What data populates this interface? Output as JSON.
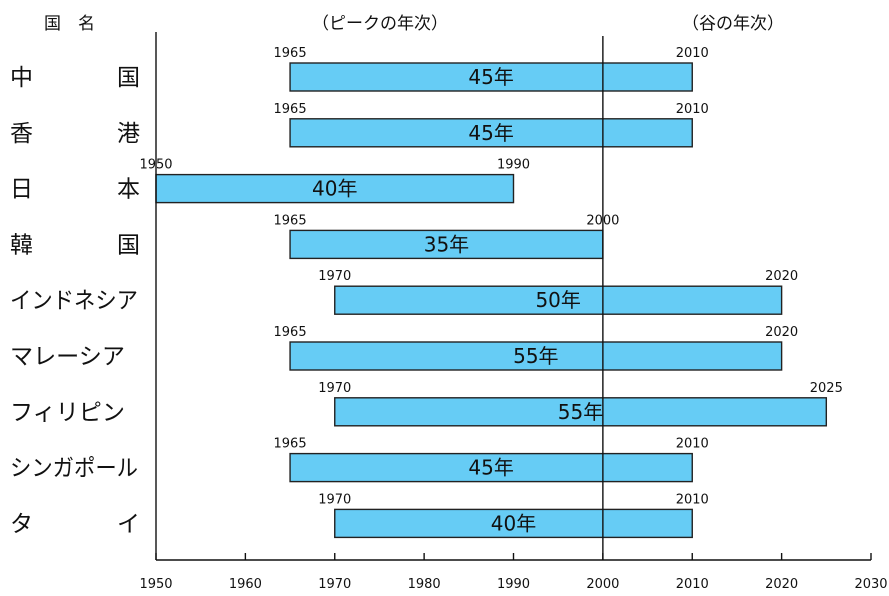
{
  "chart_data": {
    "type": "bar",
    "orientation": "horizontal-range",
    "headers": {
      "country": "国　名",
      "peak": "（ピークの年次）",
      "trough": "（谷の年次）"
    },
    "reference_line_x": 2000,
    "xlim": [
      1950,
      2030
    ],
    "xticks": [
      1950,
      1960,
      1970,
      1980,
      1990,
      2000,
      2010,
      2020,
      2030
    ],
    "grid": false,
    "color": "#66ccf5",
    "rows": [
      {
        "country": "中国",
        "start": 1965,
        "end": 2010,
        "start_label": "1965",
        "end_label": "2010",
        "duration": "45年"
      },
      {
        "country": "香港",
        "start": 1965,
        "end": 2010,
        "start_label": "1965",
        "end_label": "2010",
        "duration": "45年"
      },
      {
        "country": "日本",
        "start": 1950,
        "end": 1990,
        "start_label": "1950",
        "end_label": "1990",
        "duration": "40年"
      },
      {
        "country": "韓国",
        "start": 1965,
        "end": 2000,
        "start_label": "1965",
        "end_label": "2000",
        "duration": "35年"
      },
      {
        "country": "インドネシア",
        "start": 1970,
        "end": 2020,
        "start_label": "1970",
        "end_label": "2020",
        "duration": "50年"
      },
      {
        "country": "マレーシア",
        "start": 1965,
        "end": 2020,
        "start_label": "1965",
        "end_label": "2020",
        "duration": "55年"
      },
      {
        "country": "フィリピン",
        "start": 1970,
        "end": 2025,
        "start_label": "1970",
        "end_label": "2025",
        "duration": "55年"
      },
      {
        "country": "シンガポール",
        "start": 1965,
        "end": 2010,
        "start_label": "1965",
        "end_label": "2010",
        "duration": "45年"
      },
      {
        "country": "タイ",
        "start": 1970,
        "end": 2010,
        "start_label": "1970",
        "end_label": "2010",
        "duration": "40年"
      }
    ]
  }
}
